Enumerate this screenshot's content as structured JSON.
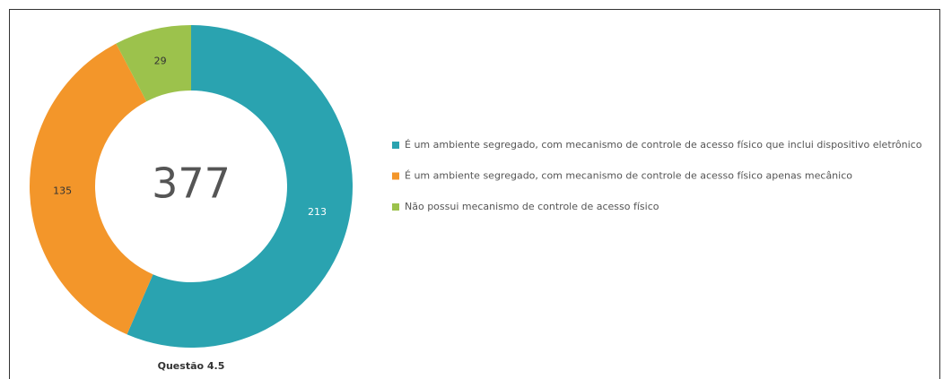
{
  "chart_data": {
    "type": "pie",
    "title": "Questão 4.5",
    "total": 377,
    "categories": [
      "É um ambiente segregado, com mecanismo de controle de acesso físico que inclui dispositivo eletrônico",
      "É um ambiente segregado, com mecanismo de controle de acesso físico apenas mecânico",
      "Não possui mecanismo de controle de acesso físico"
    ],
    "values": [
      213,
      135,
      29
    ],
    "colors": [
      "#2aa3b0",
      "#f3962a",
      "#9cc24c"
    ],
    "legend": "right"
  }
}
